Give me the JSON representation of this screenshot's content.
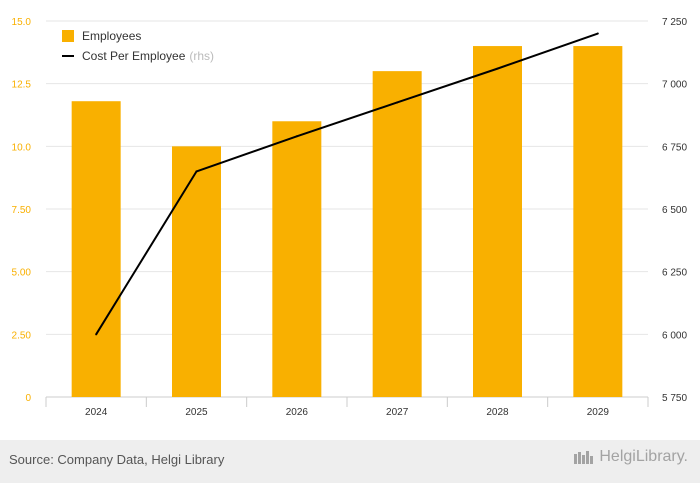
{
  "chart_data": {
    "type": "bar",
    "categories": [
      "2024",
      "2025",
      "2026",
      "2027",
      "2028",
      "2029"
    ],
    "series": [
      {
        "name": "Employees",
        "type": "bar",
        "axis": "left",
        "values": [
          11.8,
          10.0,
          11.0,
          13.0,
          14.0,
          14.0
        ]
      },
      {
        "name": "Cost Per Employee",
        "type": "line",
        "axis": "right",
        "values": [
          6000,
          6650,
          6790,
          6925,
          7060,
          7200
        ]
      }
    ],
    "left_axis": {
      "ylim": [
        0,
        15
      ],
      "ticks": [
        "0",
        "2.50",
        "5.00",
        "7.50",
        "10.0",
        "12.5",
        "15.0"
      ]
    },
    "right_axis": {
      "ylim": [
        5750,
        7250
      ],
      "ticks": [
        "5 750",
        "6 000",
        "6 250",
        "6 500",
        "6 750",
        "7 000",
        "7 250"
      ]
    },
    "legend": {
      "placement": "top-left",
      "rhs_suffix": "(rhs)"
    },
    "grid": true,
    "colors": {
      "bar": "#f9b000",
      "line": "#000000",
      "left_tick": "#f9b000",
      "right_tick": "#333333"
    }
  },
  "footer": {
    "source": "Source: Company Data, Helgi Library",
    "brand": "HelgiLibrary."
  }
}
